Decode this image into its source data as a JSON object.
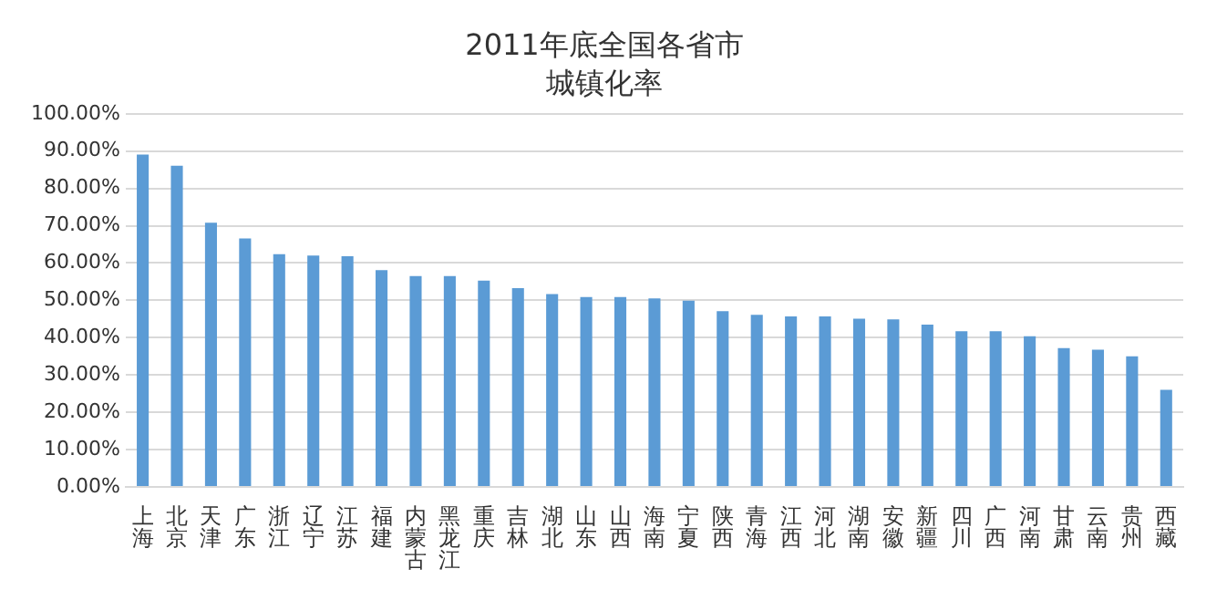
{
  "chart_data": {
    "type": "bar",
    "title": "2011年底全国各省市",
    "subtitle": "城镇化率",
    "categories": [
      "上海",
      "北京",
      "天津",
      "广东",
      "浙江",
      "辽宁",
      "江苏",
      "福建",
      "内蒙古",
      "黑龙江",
      "重庆",
      "吉林",
      "湖北",
      "山东",
      "山西",
      "海南",
      "宁夏",
      "陕西",
      "青海",
      "江西",
      "河北",
      "湖南",
      "安徽",
      "新疆",
      "四川",
      "广西",
      "河南",
      "甘肃",
      "云南",
      "贵州",
      "西藏"
    ],
    "values": [
      89.1,
      86.1,
      70.8,
      66.6,
      62.4,
      62.0,
      61.8,
      58.1,
      56.5,
      56.5,
      55.3,
      53.3,
      51.7,
      50.9,
      50.9,
      50.5,
      49.9,
      47.1,
      46.1,
      45.7,
      45.7,
      45.1,
      44.9,
      43.5,
      41.7,
      41.7,
      40.4,
      37.2,
      36.8,
      35.0,
      26.0
    ],
    "color": "#5b9bd5",
    "ylim": [
      0,
      100
    ],
    "yticks": [
      {
        "value": 0,
        "label": "0.00%"
      },
      {
        "value": 10,
        "label": "10.00%"
      },
      {
        "value": 20,
        "label": "20.00%"
      },
      {
        "value": 30,
        "label": "30.00%"
      },
      {
        "value": 40,
        "label": "40.00%"
      },
      {
        "value": 50,
        "label": "50.00%"
      },
      {
        "value": 60,
        "label": "60.00%"
      },
      {
        "value": 70,
        "label": "70.00%"
      },
      {
        "value": 80,
        "label": "80.00%"
      },
      {
        "value": 90,
        "label": "90.00%"
      },
      {
        "value": 100,
        "label": "100.00%"
      }
    ],
    "grid": "y"
  }
}
